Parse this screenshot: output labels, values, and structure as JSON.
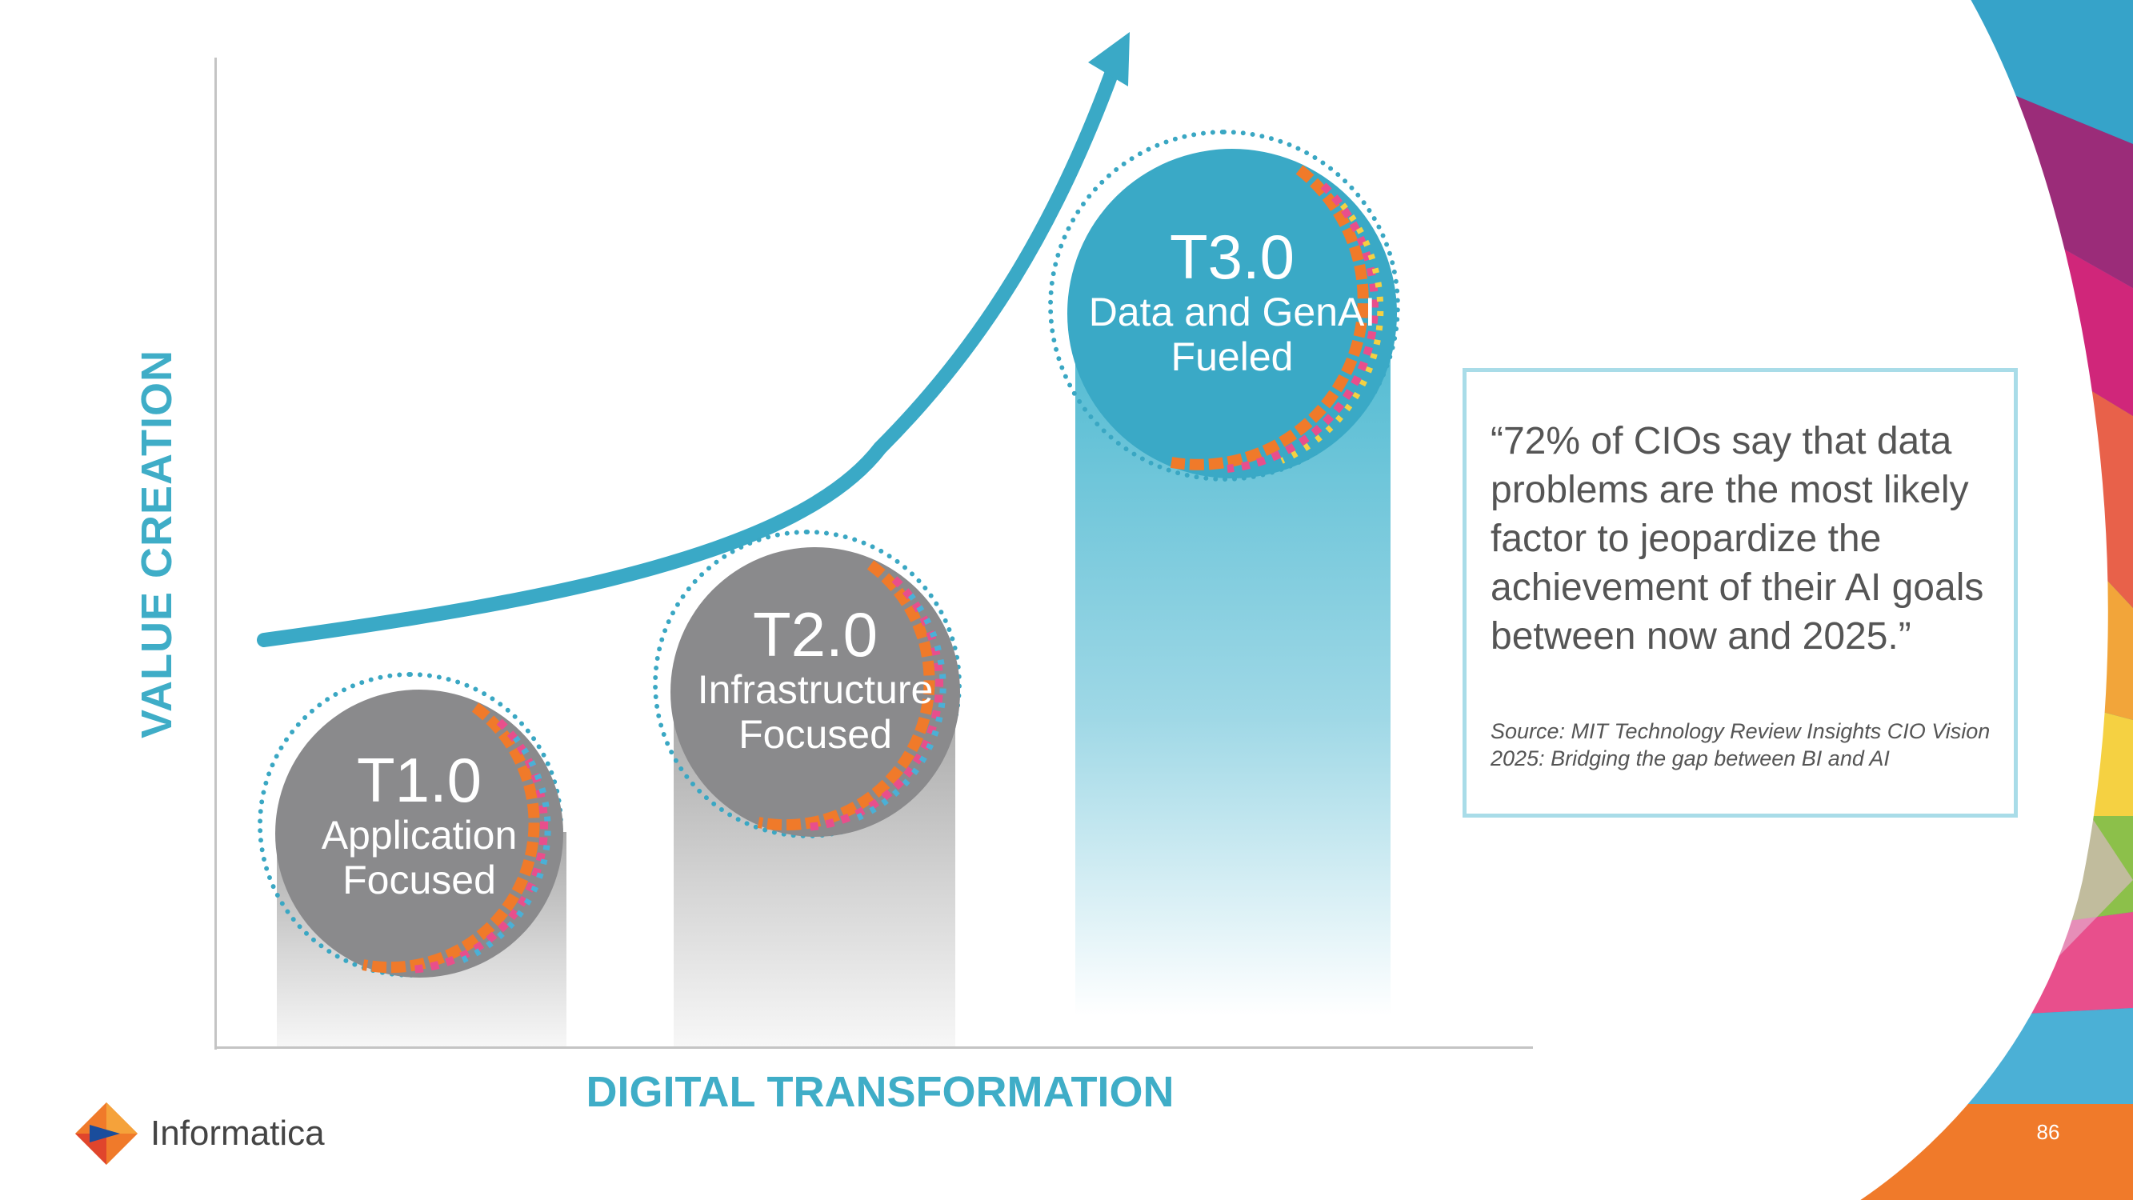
{
  "axes": {
    "y_label": "VALUE CREATION",
    "x_label": "DIGITAL TRANSFORMATION"
  },
  "stages": [
    {
      "code": "T1.0",
      "line1": "Application",
      "line2": "Focused",
      "color": "#8a8a8c"
    },
    {
      "code": "T2.0",
      "line1": "Infrastructure",
      "line2": "Focused",
      "color": "#8a8a8c"
    },
    {
      "code": "T3.0",
      "line1": "Data and GenAI",
      "line2": "Fueled",
      "color": "#3aa9c6"
    }
  ],
  "quote": {
    "text": "“72% of CIOs say that data problems are the most likely factor to jeopardize the achievement of their AI goals between now and 2025.”",
    "source": "Source: MIT Technology Review Insights CIO Vision 2025: Bridging the gap between BI and AI"
  },
  "logo": {
    "name": "Informatica",
    "mark": "informatica-logo-icon"
  },
  "page_number": "86",
  "colors": {
    "accent": "#3fadc7",
    "gray": "#8a8a8c",
    "quote_border": "#a9dce8"
  }
}
